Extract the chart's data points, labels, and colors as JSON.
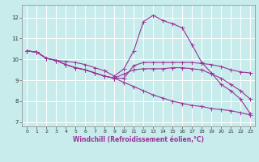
{
  "xlabel": "Windchill (Refroidissement éolien,°C)",
  "bg_color": "#c8ecec",
  "grid_color": "#aad4d4",
  "line_color": "#993399",
  "line1_x": [
    0,
    1,
    2,
    3,
    4,
    5,
    6,
    7,
    8,
    9,
    10,
    11,
    12,
    13,
    14,
    15,
    16,
    17,
    18,
    19,
    20,
    21,
    22,
    23
  ],
  "line1_y": [
    10.4,
    10.35,
    10.05,
    9.95,
    9.9,
    9.85,
    9.75,
    9.6,
    9.45,
    9.2,
    9.55,
    10.4,
    11.8,
    12.1,
    11.85,
    11.7,
    11.5,
    10.7,
    9.85,
    9.35,
    8.8,
    8.5,
    8.1,
    7.4
  ],
  "line2_x": [
    0,
    1,
    2,
    3,
    4,
    5,
    6,
    7,
    8,
    9,
    10,
    11,
    12,
    13,
    14,
    15,
    16,
    17,
    18,
    19,
    20,
    21,
    22,
    23
  ],
  "line2_y": [
    10.4,
    10.35,
    10.05,
    9.95,
    9.75,
    9.6,
    9.5,
    9.35,
    9.2,
    9.1,
    9.1,
    9.7,
    9.85,
    9.85,
    9.85,
    9.85,
    9.85,
    9.85,
    9.8,
    9.75,
    9.65,
    9.5,
    9.4,
    9.35
  ],
  "line3_x": [
    0,
    1,
    2,
    3,
    4,
    5,
    6,
    7,
    8,
    9,
    10,
    11,
    12,
    13,
    14,
    15,
    16,
    17,
    18,
    19,
    20,
    21,
    22,
    23
  ],
  "line3_y": [
    10.4,
    10.35,
    10.05,
    9.95,
    9.75,
    9.6,
    9.5,
    9.35,
    9.2,
    9.1,
    9.3,
    9.5,
    9.55,
    9.55,
    9.55,
    9.6,
    9.6,
    9.55,
    9.5,
    9.3,
    9.1,
    8.8,
    8.5,
    8.1
  ],
  "line4_x": [
    0,
    1,
    2,
    3,
    4,
    5,
    6,
    7,
    8,
    9,
    10,
    11,
    12,
    13,
    14,
    15,
    16,
    17,
    18,
    19,
    20,
    21,
    22,
    23
  ],
  "line4_y": [
    10.4,
    10.35,
    10.05,
    9.95,
    9.75,
    9.6,
    9.5,
    9.35,
    9.2,
    9.1,
    8.9,
    8.7,
    8.5,
    8.3,
    8.15,
    8.0,
    7.9,
    7.8,
    7.75,
    7.65,
    7.6,
    7.55,
    7.45,
    7.35
  ],
  "xlim": [
    -0.5,
    23.5
  ],
  "ylim": [
    6.8,
    12.6
  ],
  "yticks": [
    7,
    8,
    9,
    10,
    11,
    12
  ],
  "xticks": [
    0,
    1,
    2,
    3,
    4,
    5,
    6,
    7,
    8,
    9,
    10,
    11,
    12,
    13,
    14,
    15,
    16,
    17,
    18,
    19,
    20,
    21,
    22,
    23
  ],
  "tick_fontsize": 4.5,
  "xlabel_fontsize": 5.5
}
